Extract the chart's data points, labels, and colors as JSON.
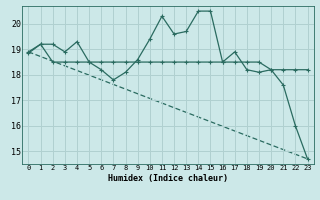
{
  "bg_color": "#cce8e8",
  "grid_color": "#b0d0d0",
  "line_color": "#2a6b60",
  "xlabel": "Humidex (Indice chaleur)",
  "xlim": [
    -0.5,
    23.5
  ],
  "ylim": [
    14.5,
    20.7
  ],
  "yticks": [
    15,
    16,
    17,
    18,
    19,
    20
  ],
  "xticks": [
    0,
    1,
    2,
    3,
    4,
    5,
    6,
    7,
    8,
    9,
    10,
    11,
    12,
    13,
    14,
    15,
    16,
    17,
    18,
    19,
    20,
    21,
    22,
    23
  ],
  "line1_x": [
    0,
    1,
    2,
    3,
    4,
    5,
    6,
    7,
    8,
    9,
    10,
    11,
    12,
    13,
    14,
    15,
    16,
    17,
    18,
    19,
    20,
    21,
    22,
    23
  ],
  "line1_y": [
    18.9,
    19.2,
    19.2,
    18.9,
    19.3,
    18.5,
    18.2,
    17.8,
    18.1,
    18.6,
    19.4,
    20.3,
    19.6,
    19.7,
    20.5,
    20.5,
    18.5,
    18.9,
    18.2,
    18.1,
    18.2,
    17.6,
    16.0,
    14.7
  ],
  "line2_x": [
    0,
    1,
    2,
    3,
    4,
    5,
    6,
    7,
    8,
    9,
    10,
    11,
    12,
    13,
    14,
    15,
    16,
    17,
    18,
    19,
    20,
    21,
    22,
    23
  ],
  "line2_y": [
    18.85,
    19.2,
    18.5,
    18.5,
    18.5,
    18.5,
    18.5,
    18.5,
    18.5,
    18.5,
    18.5,
    18.5,
    18.5,
    18.5,
    18.5,
    18.5,
    18.5,
    18.5,
    18.5,
    18.5,
    18.2,
    18.2,
    18.2,
    18.2
  ],
  "line3_x": [
    0,
    23
  ],
  "line3_y": [
    18.9,
    14.7
  ]
}
